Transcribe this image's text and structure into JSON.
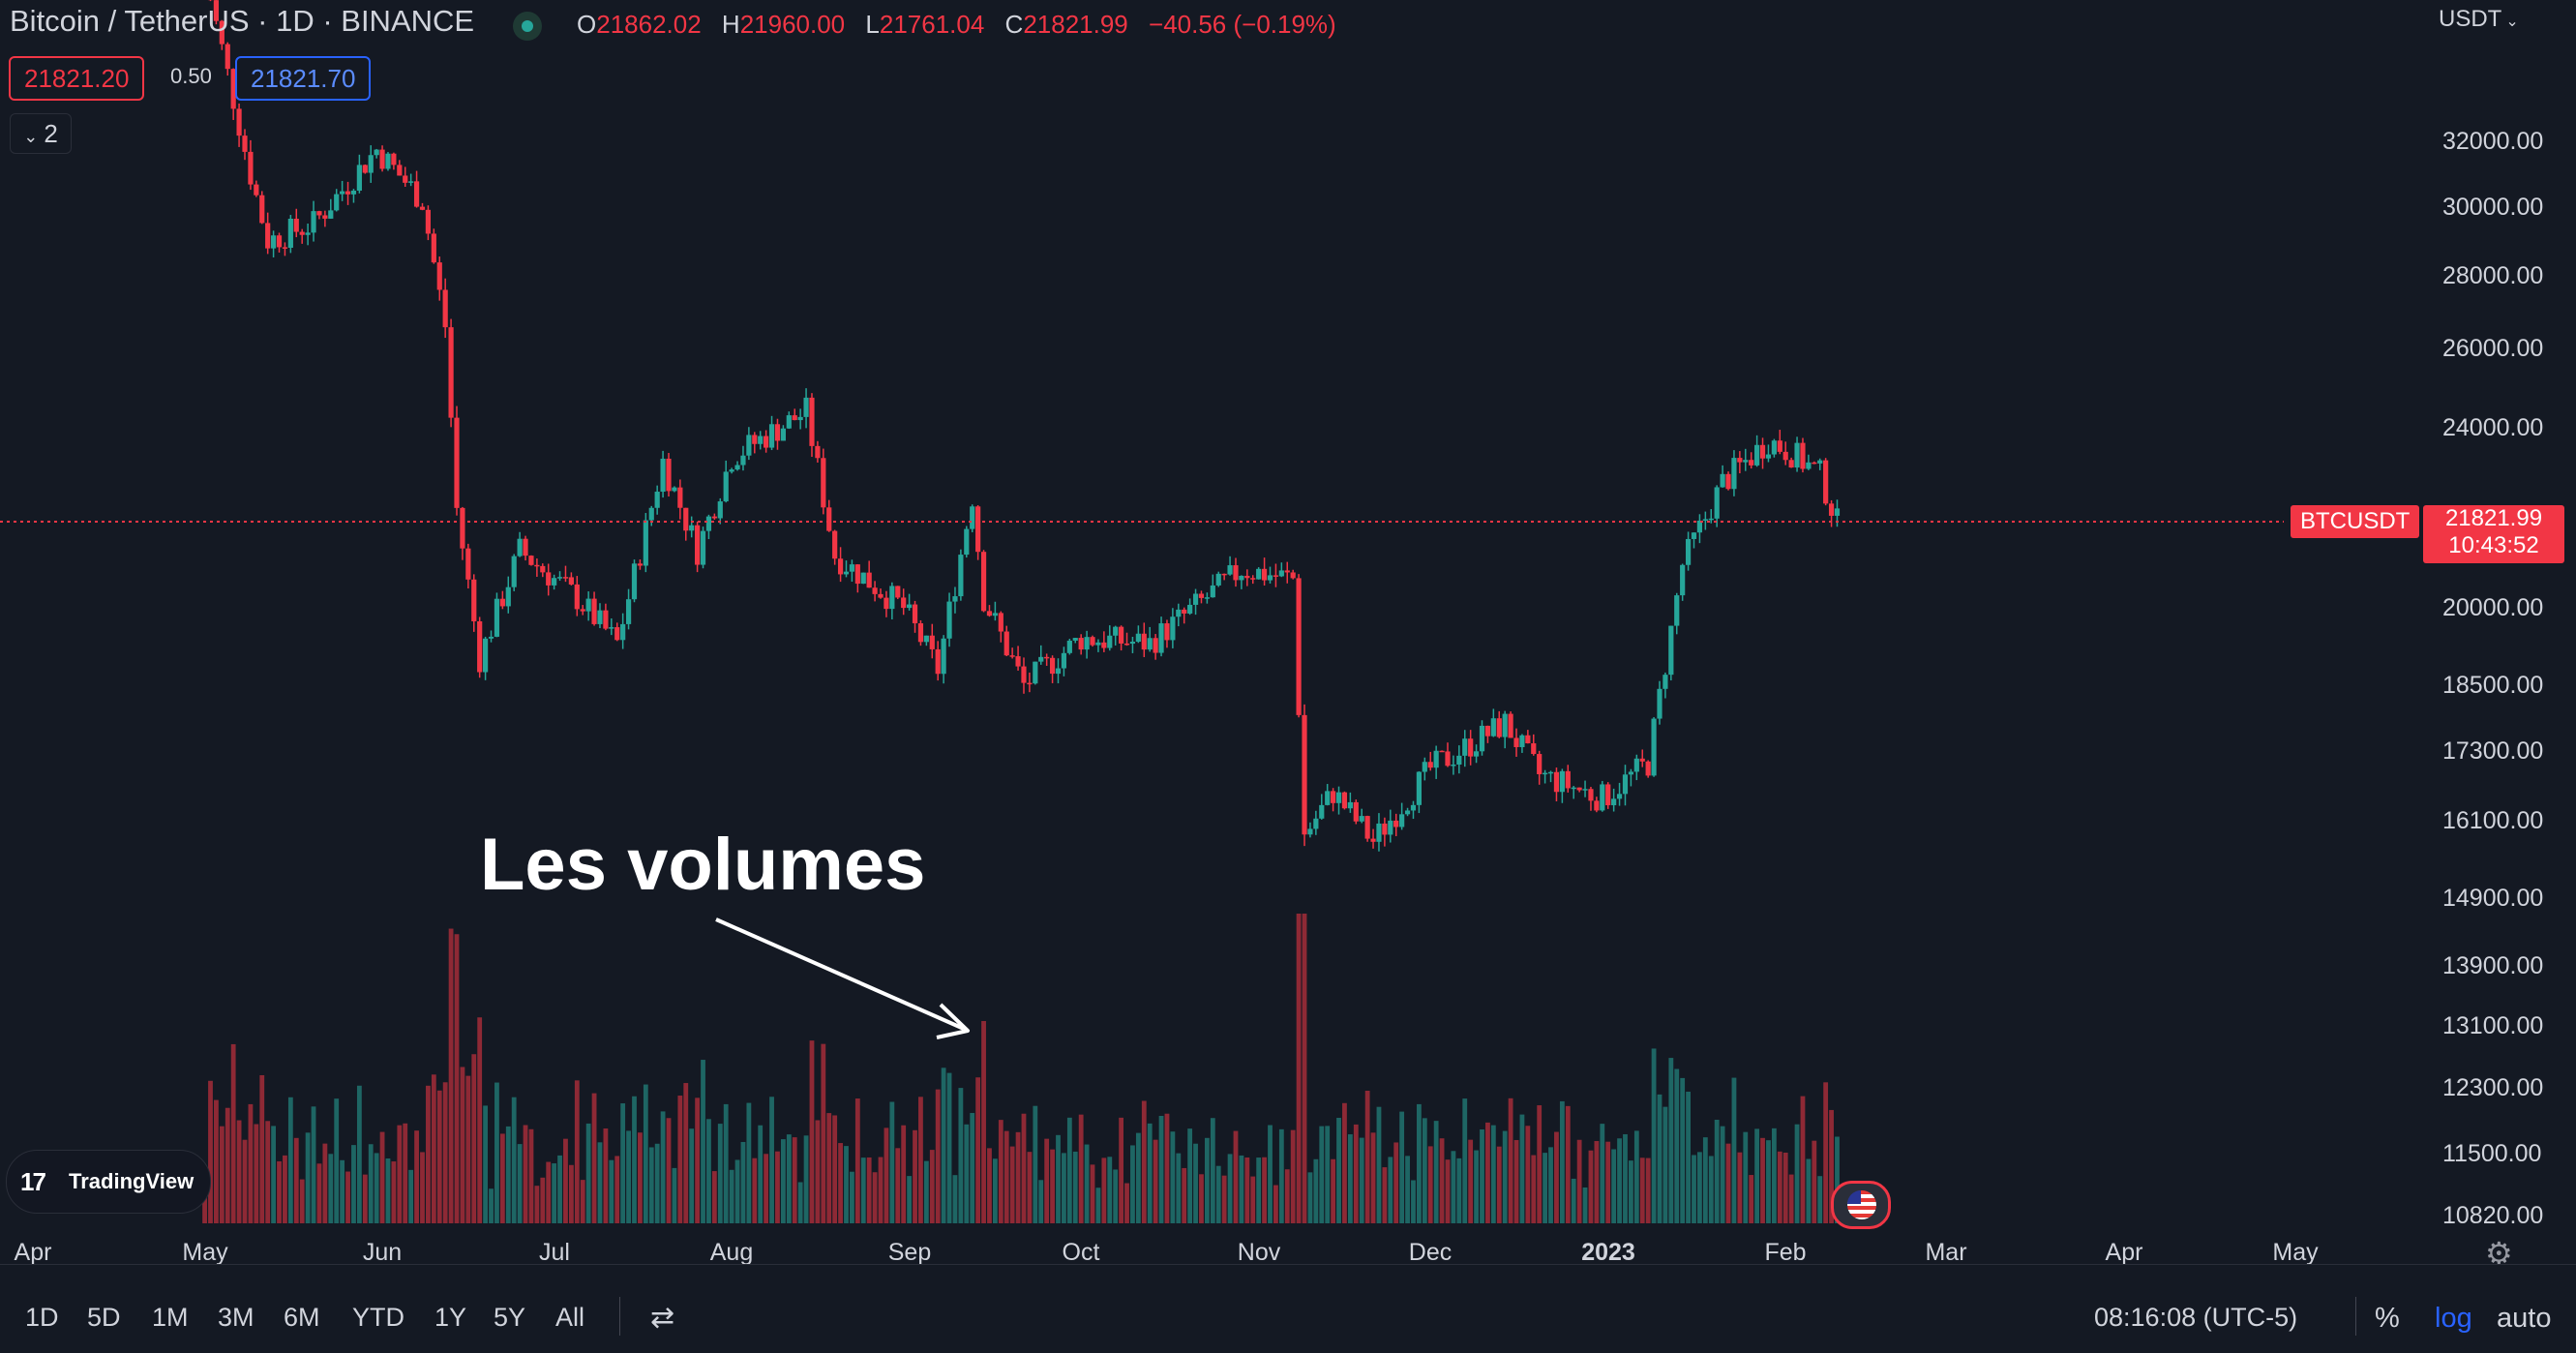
{
  "header": {
    "symbol_title": "Bitcoin / TetherUS · 1D · BINANCE",
    "ohlc": {
      "open_key": "O",
      "open": "21862.02",
      "high_key": "H",
      "high": "21960.00",
      "low_key": "L",
      "low": "21761.04",
      "close_key": "C",
      "close": "21821.99",
      "change": "−40.56 (−0.19%)"
    },
    "sell_price": "21821.20",
    "spread": "0.50",
    "buy_price": "21821.70",
    "indicators_count": "2",
    "currency": "USDT"
  },
  "price_axis": {
    "labels": [
      "32000.00",
      "30000.00",
      "28000.00",
      "26000.00",
      "24000.00",
      "20000.00",
      "18500.00",
      "17300.00",
      "16100.00",
      "14900.00",
      "13900.00",
      "13100.00",
      "12300.00",
      "11500.00",
      "10820.00"
    ],
    "symbol_label": "BTCUSDT",
    "last_price": "21821.99",
    "countdown": "10:43:52"
  },
  "time_axis": {
    "labels": [
      "Apr",
      "May",
      "Jun",
      "Jul",
      "Aug",
      "Sep",
      "Oct",
      "Nov",
      "Dec",
      "2023",
      "Feb",
      "Mar",
      "Apr",
      "May"
    ]
  },
  "annotation": {
    "text": "Les volumes"
  },
  "watermark": {
    "text": "TradingView"
  },
  "bottom_toolbar": {
    "ranges": [
      "1D",
      "5D",
      "1M",
      "3M",
      "6M",
      "YTD",
      "1Y",
      "5Y",
      "All"
    ],
    "clock": "08:16:08 (UTC-5)",
    "percent": "%",
    "log": "log",
    "auto": "auto"
  },
  "colors": {
    "background": "#141923",
    "up": "#26a69a",
    "down": "#f23645",
    "accent": "#2962ff"
  },
  "icons": [
    "market-open-icon",
    "chevron-down-icon",
    "goto-date-icon",
    "settings-gear-icon",
    "tradingview-logo-icon",
    "us-flag-icon"
  ],
  "chart_data": {
    "type": "candlestick",
    "symbol": "BTCUSDT",
    "scale": "log",
    "x_range": [
      "2022-04",
      "2023-05"
    ],
    "y_range": [
      10820,
      33000
    ],
    "last_price": 21821.99,
    "price_series": [
      {
        "date": "2022-05-01",
        "close": 38000
      },
      {
        "date": "2022-05-09",
        "close": 31000
      },
      {
        "date": "2022-05-12",
        "close": 29000
      },
      {
        "date": "2022-05-20",
        "close": 29500
      },
      {
        "date": "2022-05-31",
        "close": 31800
      },
      {
        "date": "2022-06-08",
        "close": 30200
      },
      {
        "date": "2022-06-12",
        "close": 26600
      },
      {
        "date": "2022-06-14",
        "close": 22100
      },
      {
        "date": "2022-06-18",
        "close": 19000
      },
      {
        "date": "2022-06-25",
        "close": 21200
      },
      {
        "date": "2022-07-05",
        "close": 20200
      },
      {
        "date": "2022-07-12",
        "close": 19300
      },
      {
        "date": "2022-07-20",
        "close": 23200
      },
      {
        "date": "2022-07-26",
        "close": 21200
      },
      {
        "date": "2022-08-01",
        "close": 23300
      },
      {
        "date": "2022-08-14",
        "close": 24400
      },
      {
        "date": "2022-08-19",
        "close": 21100
      },
      {
        "date": "2022-08-31",
        "close": 20000
      },
      {
        "date": "2022-09-06",
        "close": 18800
      },
      {
        "date": "2022-09-12",
        "close": 22400
      },
      {
        "date": "2022-09-14",
        "close": 20200
      },
      {
        "date": "2022-09-21",
        "close": 18500
      },
      {
        "date": "2022-10-01",
        "close": 19400
      },
      {
        "date": "2022-10-13",
        "close": 19300
      },
      {
        "date": "2022-10-29",
        "close": 20800
      },
      {
        "date": "2022-11-07",
        "close": 20600
      },
      {
        "date": "2022-11-09",
        "close": 15900
      },
      {
        "date": "2022-11-14",
        "close": 16600
      },
      {
        "date": "2022-11-21",
        "close": 15800
      },
      {
        "date": "2022-12-01",
        "close": 17000
      },
      {
        "date": "2022-12-14",
        "close": 17800
      },
      {
        "date": "2022-12-20",
        "close": 16900
      },
      {
        "date": "2022-12-31",
        "close": 16500
      },
      {
        "date": "2023-01-08",
        "close": 17100
      },
      {
        "date": "2023-01-14",
        "close": 20900
      },
      {
        "date": "2023-01-21",
        "close": 22700
      },
      {
        "date": "2023-01-29",
        "close": 23700
      },
      {
        "date": "2023-02-02",
        "close": 23400
      },
      {
        "date": "2023-02-07",
        "close": 22900
      },
      {
        "date": "2023-02-10",
        "close": 21800
      }
    ]
  }
}
